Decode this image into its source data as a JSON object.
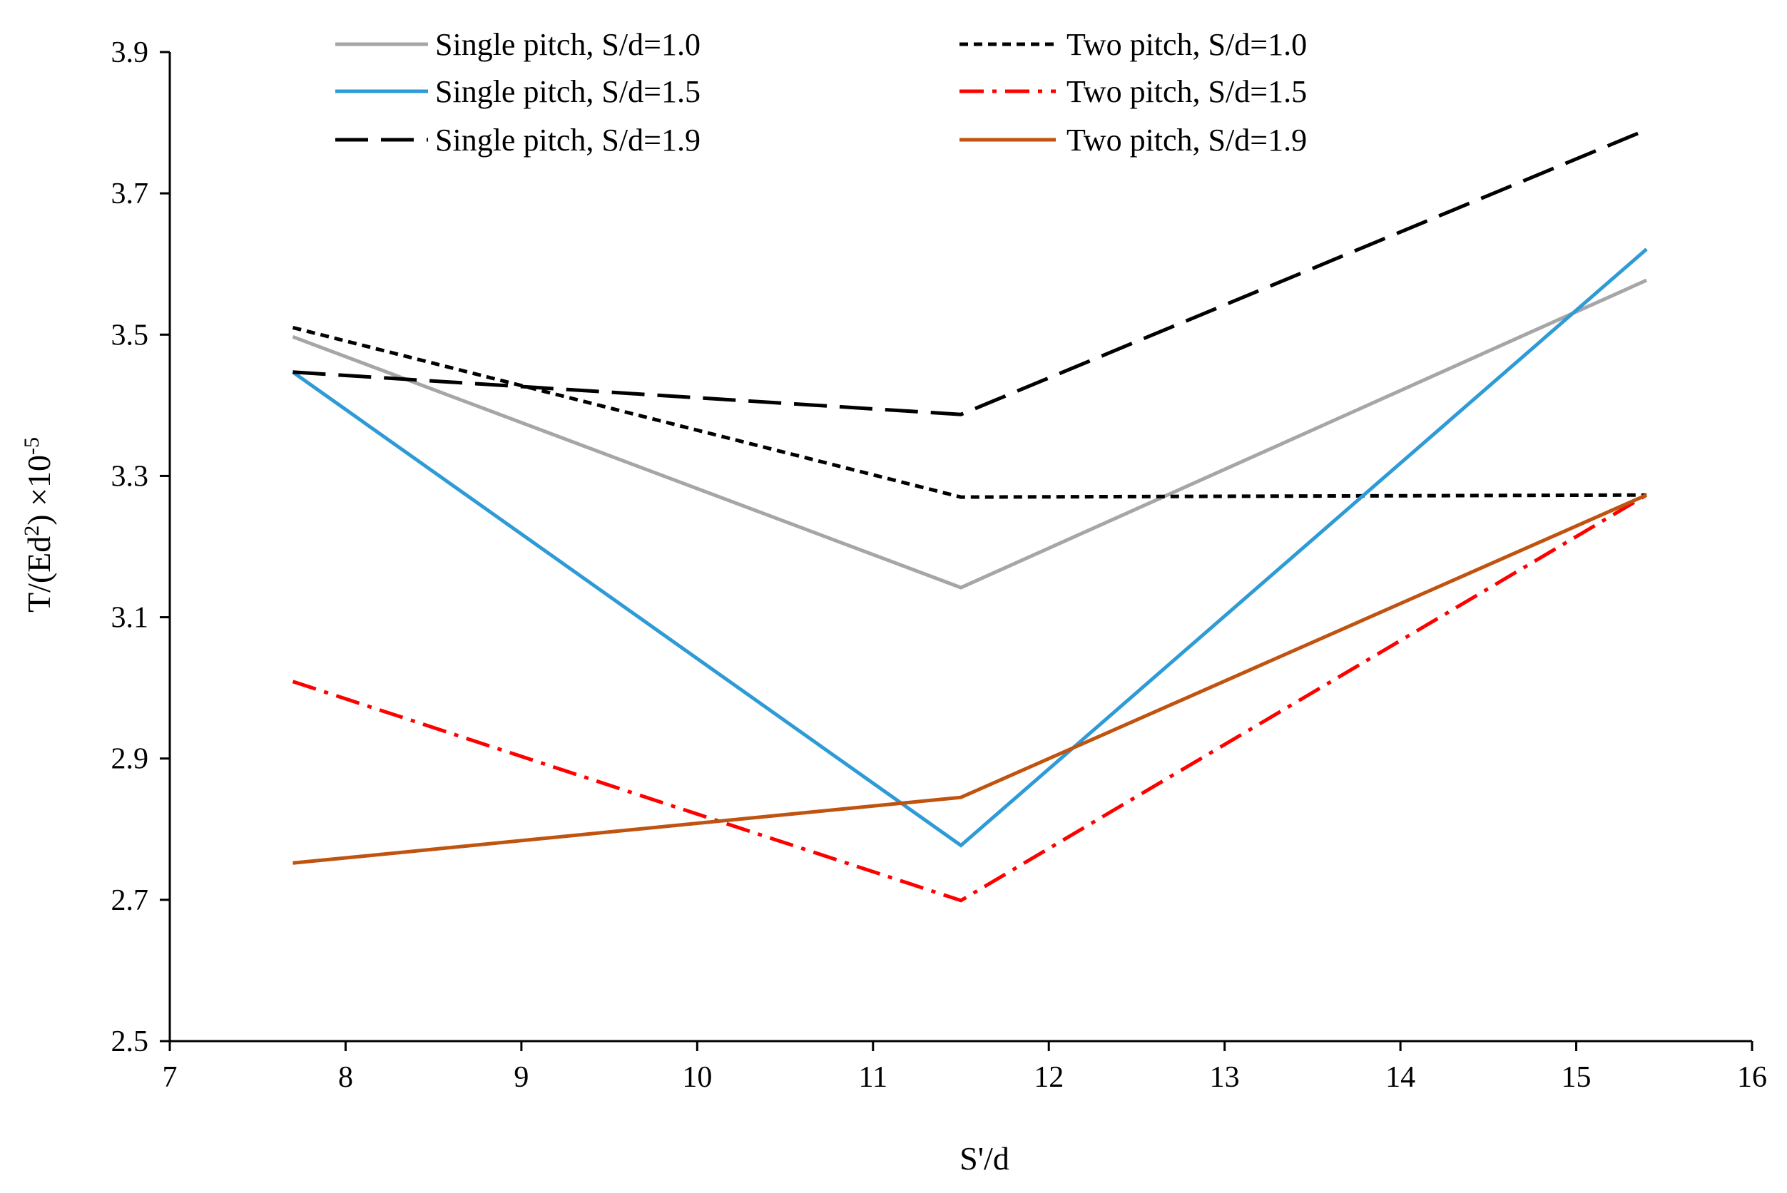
{
  "chart_data": {
    "type": "line",
    "title": "",
    "xlabel": "S'/d",
    "ylabel_main": "T/(Ed",
    "ylabel_sup1": "2",
    "ylabel_mid": ") ×10",
    "ylabel_sup2": "-5",
    "xlim": [
      7,
      16
    ],
    "ylim": [
      2.5,
      3.9
    ],
    "xticks": [
      7,
      8,
      9,
      10,
      11,
      12,
      13,
      14,
      15,
      16
    ],
    "xtick_labels": [
      "7",
      "8",
      "9",
      "10",
      "11",
      "12",
      "13",
      "14",
      "15",
      "16"
    ],
    "yticks": [
      2.5,
      2.7,
      2.9,
      3.1,
      3.3,
      3.5,
      3.7,
      3.9
    ],
    "ytick_labels": [
      "2.5",
      "2.7",
      "2.9",
      "3.1",
      "3.3",
      "3.5",
      "3.7",
      "3.9"
    ],
    "grid": false,
    "legend_position": "top",
    "x": [
      7.7,
      11.5,
      15.4
    ],
    "series": [
      {
        "name": "Single pitch, S/d=1.0",
        "values": [
          3.497,
          3.142,
          3.577
        ],
        "color": "#A6A6A6",
        "dash": "solid"
      },
      {
        "name": "Two pitch, S/d=1.0",
        "values": [
          3.51,
          3.27,
          3.273
        ],
        "color": "#000000",
        "dash": "short-dash"
      },
      {
        "name": "Single pitch, S/d=1.5",
        "values": [
          3.447,
          2.777,
          3.621
        ],
        "color": "#2E9BD6",
        "dash": "solid"
      },
      {
        "name": "Two pitch, S/d=1.5",
        "values": [
          3.009,
          2.699,
          3.273
        ],
        "color": "#FF0000",
        "dash": "dash-dot"
      },
      {
        "name": "Single pitch, S/d=1.9",
        "values": [
          3.447,
          3.387,
          3.79
        ],
        "color": "#000000",
        "dash": "long-dash"
      },
      {
        "name": "Two pitch, S/d=1.9",
        "values": [
          2.752,
          2.845,
          3.273
        ],
        "color": "#C0530F",
        "dash": "solid"
      }
    ]
  }
}
